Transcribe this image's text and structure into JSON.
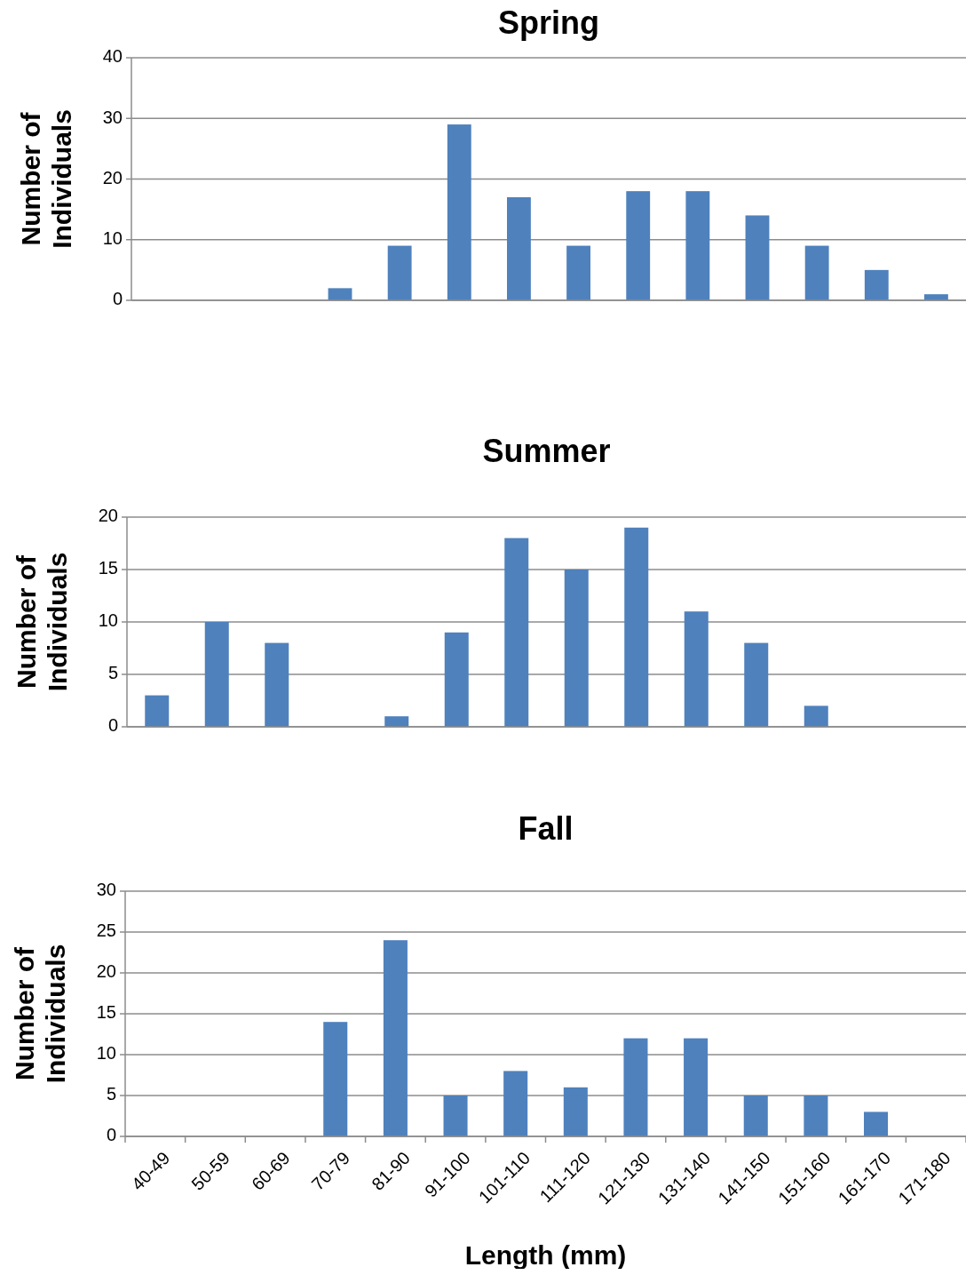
{
  "chart_data": [
    {
      "type": "bar",
      "title": "Spring",
      "ylabel": "Number of Individuals",
      "categories": [
        null,
        null,
        null,
        null,
        null,
        null,
        null,
        null,
        null,
        null,
        null,
        null,
        null,
        null
      ],
      "values": [
        0,
        0,
        0,
        2,
        9,
        29,
        17,
        9,
        18,
        18,
        14,
        9,
        5,
        1
      ],
      "color": "#4f81bd",
      "ylim": [
        0,
        40
      ],
      "yticks": [
        0,
        10,
        20,
        30,
        40
      ],
      "grid": "y",
      "tick_labels": "y"
    },
    {
      "type": "bar",
      "title": "Summer",
      "ylabel": "Number of Individuals",
      "categories": [
        null,
        null,
        null,
        null,
        null,
        null,
        null,
        null,
        null,
        null,
        null,
        null,
        null,
        null
      ],
      "values": [
        3,
        10,
        8,
        0,
        1,
        9,
        18,
        15,
        19,
        11,
        8,
        2,
        0,
        0
      ],
      "color": "#4f81bd",
      "ylim": [
        0,
        20
      ],
      "yticks": [
        0,
        5,
        10,
        15,
        20
      ],
      "grid": "y",
      "tick_labels": "y"
    },
    {
      "type": "bar",
      "title": "Fall",
      "xlabel": "Length (mm)",
      "ylabel": "Number of Individuals",
      "categories": [
        "40-49",
        "50-59",
        "60-69",
        "70-79",
        "81-90",
        "91-100",
        "101-110",
        "111-120",
        "121-130",
        "131-140",
        "141-150",
        "151-160",
        "161-170",
        "171-180"
      ],
      "values": [
        0,
        0,
        0,
        14,
        24,
        5,
        8,
        6,
        12,
        12,
        5,
        5,
        3,
        0
      ],
      "color": "#4f81bd",
      "ylim": [
        0,
        30
      ],
      "yticks": [
        0,
        5,
        10,
        15,
        20,
        25,
        30
      ],
      "grid": "y"
    }
  ]
}
